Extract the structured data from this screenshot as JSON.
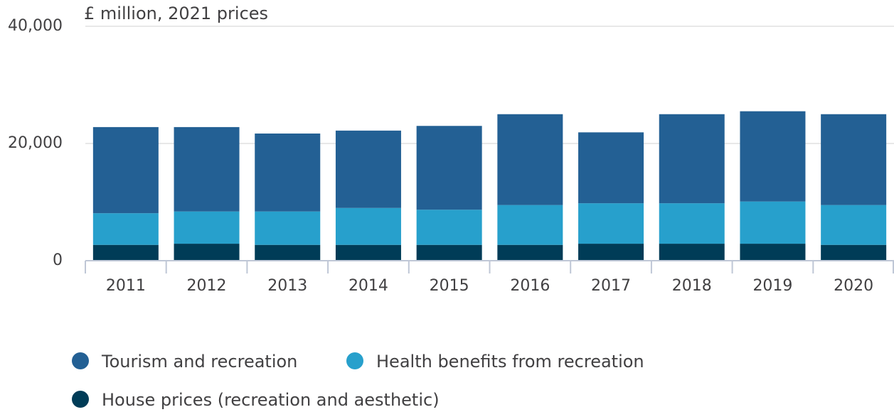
{
  "chart_data": {
    "type": "stacked_bar",
    "y_axis_label": "£ million, 2021 prices",
    "categories": [
      "2011",
      "2012",
      "2013",
      "2014",
      "2015",
      "2016",
      "2017",
      "2018",
      "2019",
      "2020"
    ],
    "series": [
      {
        "name": "Tourism and recreation",
        "color": "#236094",
        "values": [
          14700,
          14400,
          13300,
          13200,
          14300,
          15500,
          12100,
          15200,
          15400,
          15500
        ]
      },
      {
        "name": "Health benefits from recreation",
        "color": "#27a0cc",
        "values": [
          5400,
          5500,
          5700,
          6300,
          6000,
          6800,
          6900,
          6900,
          7200,
          6800
        ]
      },
      {
        "name": "House prices (recreation and aesthetic)",
        "color": "#003c57",
        "values": [
          2700,
          2900,
          2700,
          2700,
          2700,
          2700,
          2900,
          2900,
          2900,
          2700
        ]
      }
    ],
    "ylim": [
      0,
      40000
    ],
    "yticks": [
      0,
      {
        "value": 20000,
        "label": "20,000"
      },
      {
        "value": 40000,
        "label": "40,000"
      }
    ],
    "grid": true
  }
}
